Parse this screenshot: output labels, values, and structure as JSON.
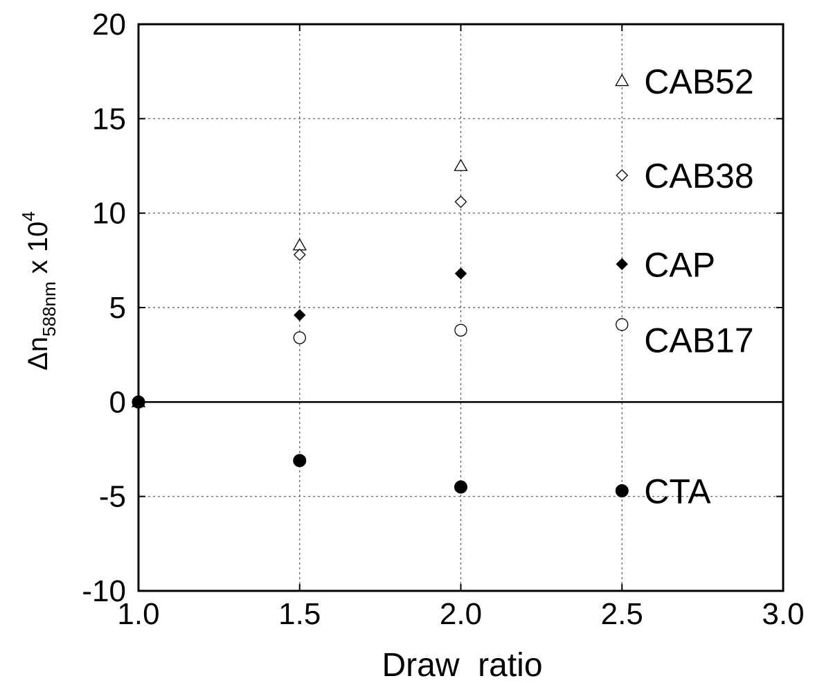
{
  "chart_data": {
    "type": "scatter",
    "xlabel": "Draw  ratio",
    "ylabel": {
      "symbol": "Δn",
      "subscript": "588nm",
      "multiplier": " x 10",
      "exponent": "4"
    },
    "xlim": [
      1.0,
      3.0
    ],
    "ylim": [
      -10,
      20
    ],
    "x_ticks": [
      1.0,
      1.5,
      2.0,
      2.5,
      3.0
    ],
    "x_tick_labels": [
      "1.0",
      "1.5",
      "2.0",
      "2.5",
      "3.0"
    ],
    "y_ticks": [
      -10,
      -5,
      0,
      5,
      10,
      15,
      20
    ],
    "y_tick_labels": [
      "-10",
      "-5",
      "0",
      "5",
      "10",
      "15",
      "20"
    ],
    "grid": true,
    "zero_line": true,
    "legend_placement": "right, inside plot",
    "series": [
      {
        "name": "CAB52",
        "marker": "triangle-open",
        "x": [
          1.0,
          1.5,
          2.0
        ],
        "y": [
          0,
          8.3,
          12.5
        ],
        "legend_y": 17.0
      },
      {
        "name": "CAB38",
        "marker": "diamond-open",
        "x": [
          1.0,
          1.5,
          2.0
        ],
        "y": [
          0,
          7.8,
          10.6
        ],
        "legend_y": 12.0
      },
      {
        "name": "CAP",
        "marker": "diamond-filled",
        "x": [
          1.0,
          1.5,
          2.0
        ],
        "y": [
          0,
          4.6,
          6.8
        ],
        "legend_y": 7.3
      },
      {
        "name": "CAB17",
        "marker": "circle-open",
        "x": [
          1.0,
          1.5,
          2.0
        ],
        "y": [
          0,
          3.4,
          3.8
        ],
        "legend_y": 4.1
      },
      {
        "name": "CTA",
        "marker": "circle-filled",
        "x": [
          1.0,
          1.5,
          2.0
        ],
        "y": [
          0,
          -3.1,
          -4.5
        ],
        "legend_y": -4.7
      }
    ]
  }
}
